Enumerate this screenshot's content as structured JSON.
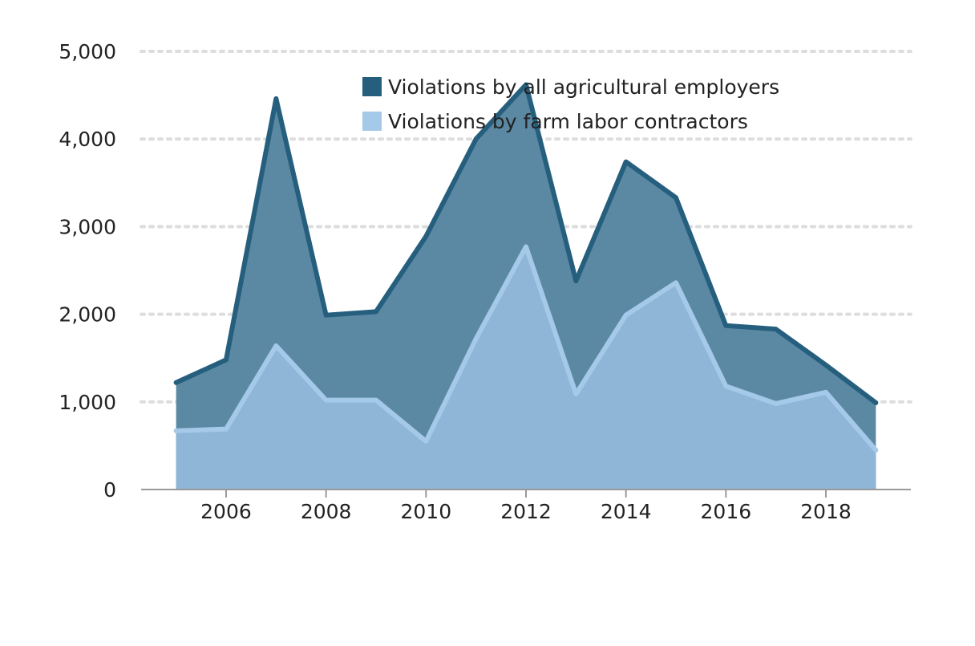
{
  "chart_data": {
    "type": "area",
    "x": [
      2005,
      2006,
      2007,
      2008,
      2009,
      2010,
      2011,
      2012,
      2013,
      2014,
      2015,
      2016,
      2017,
      2018,
      2019
    ],
    "series": [
      {
        "name": "Violations by all agricultural employers",
        "values": [
          1220,
          1480,
          4460,
          1990,
          2030,
          2890,
          4000,
          4620,
          2380,
          3740,
          3330,
          1870,
          1830,
          1420,
          990
        ],
        "color": "#265f7e",
        "fill": "#5b89a3"
      },
      {
        "name": "Violations by farm labor contractors",
        "values": [
          670,
          690,
          1640,
          1020,
          1020,
          550,
          1720,
          2770,
          1090,
          1990,
          2360,
          1180,
          980,
          1110,
          450
        ],
        "color": "#a5c9e8",
        "fill": "#8fb6d7"
      }
    ],
    "x_ticks": [
      2006,
      2008,
      2010,
      2012,
      2014,
      2016,
      2018
    ],
    "x_tick_labels": [
      "2006",
      "2008",
      "2010",
      "2012",
      "2014",
      "2016",
      "2018"
    ],
    "y_ticks": [
      0,
      1000,
      2000,
      3000,
      4000,
      5000
    ],
    "y_tick_labels": [
      "0",
      "1,000",
      "2,000",
      "3,000",
      "4,000",
      "5,000"
    ],
    "xlim": [
      2004.3,
      2019.7
    ],
    "ylim": [
      0,
      5000
    ],
    "grid": true,
    "legend_position": "top-right",
    "title": "",
    "xlabel": "",
    "ylabel": ""
  }
}
